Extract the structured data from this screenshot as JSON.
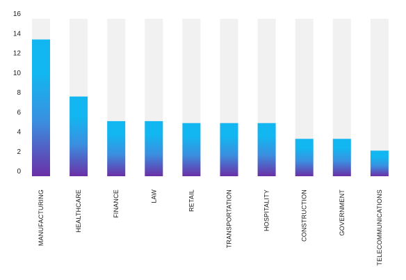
{
  "chart_data": {
    "type": "bar",
    "stacked_background": true,
    "categories": [
      "MANUFACTURING",
      "HEALTHCARE",
      "FINANCE",
      "LAW",
      "RETAIL",
      "TRANSPORTATION",
      "HOSPITALITY",
      "CONSTRUCTION",
      "GOVERNMENT",
      "TELECOMMUNICATIONS"
    ],
    "values": [
      13.9,
      8.1,
      5.6,
      5.6,
      5.4,
      5.4,
      5.4,
      3.8,
      3.8,
      2.6
    ],
    "ylim": [
      0,
      16
    ],
    "yticks": [
      "0",
      "2",
      "4",
      "6",
      "8",
      "10",
      "12",
      "14",
      "16"
    ],
    "grid": false,
    "legend": "none",
    "colors": {
      "bar_top": "#12b6f0",
      "bar_mid": "#3a8fe0",
      "bar_bottom": "#6b2fa6",
      "track": "#f1f1f1",
      "text": "#1a1a1a"
    }
  }
}
